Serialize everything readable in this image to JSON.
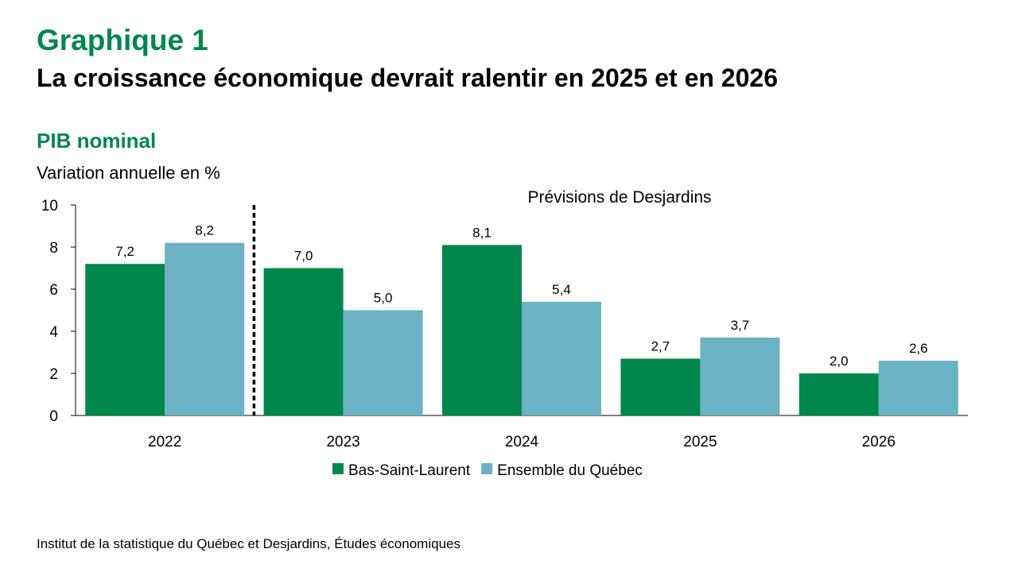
{
  "header": {
    "graph_number": "Graphique 1",
    "title": "La croissance économique devrait ralentir en 2025 et en 2026",
    "subtitle": "PIB nominal",
    "y_axis_label": "Variation annuelle en %"
  },
  "footer": {
    "source": "Institut de la statistique du Québec et Desjardins, Études économiques"
  },
  "colors": {
    "brand_green": "#00874e",
    "series_1": "#00874e",
    "series_2": "#6ab2c4"
  },
  "chart_data": {
    "type": "bar",
    "categories": [
      "2022",
      "2023",
      "2024",
      "2025",
      "2026"
    ],
    "series": [
      {
        "name": "Bas-Saint-Laurent",
        "values": [
          7.2,
          7.0,
          8.1,
          2.7,
          2.0
        ],
        "labels": [
          "7,2",
          "7,0",
          "8,1",
          "2,7",
          "2,0"
        ],
        "color": "#00874e"
      },
      {
        "name": "Ensemble du Québec",
        "values": [
          8.2,
          5.0,
          5.4,
          3.7,
          2.6
        ],
        "labels": [
          "8,2",
          "5,0",
          "5,4",
          "3,7",
          "2,6"
        ],
        "color": "#6ab2c4"
      }
    ],
    "ylim": [
      0,
      10
    ],
    "yticks": [
      "0",
      "2",
      "4",
      "6",
      "8",
      "10"
    ],
    "annotation": "Prévisions de Desjardins",
    "legend_position": "bottom",
    "grid": false,
    "forecast_divider_after_category": "2022"
  }
}
